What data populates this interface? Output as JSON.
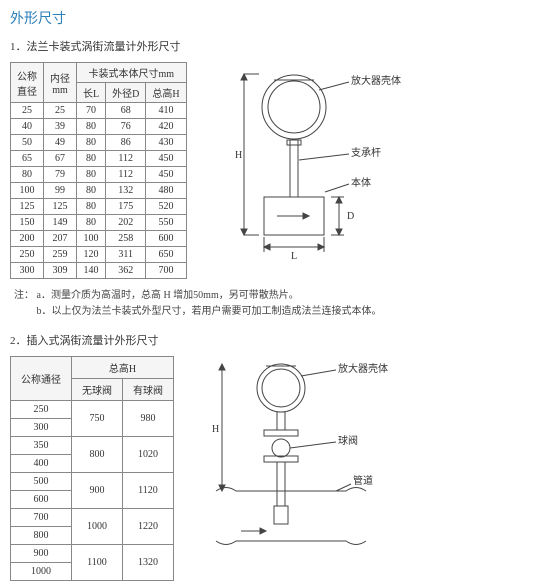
{
  "main_title": "外形尺寸",
  "section1": {
    "title": "1．法兰卡装式涡街流量计外形尺寸",
    "headers": {
      "col1_l1": "公称",
      "col1_l2": "直径",
      "col2_l1": "内径",
      "col2_l2": "mm",
      "col34_span": "卡装式本体尺寸mm",
      "col3": "长L",
      "col4": "外径D",
      "col5": "总高H"
    },
    "rows": [
      [
        "25",
        "25",
        "70",
        "68",
        "410"
      ],
      [
        "40",
        "39",
        "80",
        "76",
        "420"
      ],
      [
        "50",
        "49",
        "80",
        "86",
        "430"
      ],
      [
        "65",
        "67",
        "80",
        "112",
        "450"
      ],
      [
        "80",
        "79",
        "80",
        "112",
        "450"
      ],
      [
        "100",
        "99",
        "80",
        "132",
        "480"
      ],
      [
        "125",
        "125",
        "80",
        "175",
        "520"
      ],
      [
        "150",
        "149",
        "80",
        "202",
        "550"
      ],
      [
        "200",
        "207",
        "100",
        "258",
        "600"
      ],
      [
        "250",
        "259",
        "120",
        "311",
        "650"
      ],
      [
        "300",
        "309",
        "140",
        "362",
        "700"
      ]
    ],
    "note_a": "注： a．测量介质为高温时，总高 H 增加50mm，另可带散热片。",
    "note_b": "　　 b．以上仅为法兰卡装式外型尺寸，若用户需要可加工制造成法兰连接式本体。",
    "diagram": {
      "label_amp": "放大器壳体",
      "label_rod": "支承杆",
      "label_body": "本体",
      "dim_H": "H",
      "dim_D": "D",
      "dim_L": "L",
      "stroke": "#444"
    }
  },
  "section2": {
    "title": "2．插入式涡街流量计外形尺寸",
    "headers": {
      "col1": "公称通径",
      "col23_span": "总高H",
      "col2": "无球阀",
      "col3": "有球阀"
    },
    "rows": [
      {
        "d": "250",
        "nv": "750",
        "hv": "980",
        "span": 2,
        "pair": "300"
      },
      {
        "d": "350",
        "nv": "800",
        "hv": "1020",
        "span": 2,
        "pair": "400"
      },
      {
        "d": "500",
        "nv": "900",
        "hv": "1120",
        "span": 2,
        "pair": "600"
      },
      {
        "d": "700",
        "nv": "1000",
        "hv": "1220",
        "span": 2,
        "pair": "800"
      },
      {
        "d": "900",
        "nv": "1100",
        "hv": "1320",
        "span": 2,
        "pair": "1000"
      }
    ],
    "diagram": {
      "label_amp": "放大器壳体",
      "label_valve": "球阀",
      "label_pipe": "管道",
      "dim_H": "H",
      "stroke": "#444"
    }
  }
}
